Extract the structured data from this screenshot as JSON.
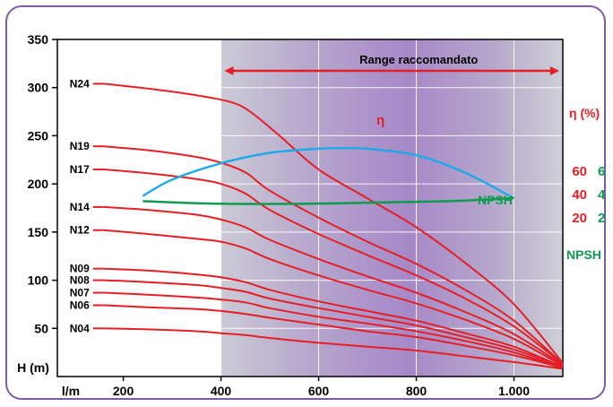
{
  "chart_data": {
    "type": "line",
    "xlabel": "l/m",
    "ylabel": "H (m)",
    "xlim": [
      65,
      1100
    ],
    "ylim": [
      0,
      350
    ],
    "x_ticks": [
      {
        "value": 200,
        "label": "200"
      },
      {
        "value": 400,
        "label": "400"
      },
      {
        "value": 600,
        "label": "600"
      },
      {
        "value": 800,
        "label": "800"
      },
      {
        "value": 1000,
        "label": "1.000"
      }
    ],
    "y_ticks": [
      50,
      100,
      150,
      200,
      250,
      300,
      350
    ],
    "grid": true,
    "range": {
      "label": "Range raccomandato",
      "from": 400,
      "to": 1100
    },
    "series": [
      {
        "name": "N24",
        "x": [
          160,
          250,
          350,
          420,
          460,
          520,
          600,
          700,
          800,
          900,
          1000,
          1100
        ],
        "y": [
          304,
          299,
          292,
          285,
          275,
          250,
          215,
          185,
          155,
          118,
          75,
          14
        ]
      },
      {
        "name": "N19",
        "x": [
          160,
          250,
          350,
          400,
          450,
          500,
          600,
          700,
          800,
          900,
          1000,
          1100
        ],
        "y": [
          239,
          235,
          228,
          222,
          212,
          193,
          165,
          140,
          117,
          90,
          58,
          13
        ]
      },
      {
        "name": "N17",
        "x": [
          160,
          250,
          350,
          400,
          450,
          500,
          600,
          700,
          800,
          900,
          1000,
          1100
        ],
        "y": [
          215,
          211,
          205,
          200,
          190,
          173,
          148,
          126,
          105,
          81,
          52,
          13
        ]
      },
      {
        "name": "N14",
        "x": [
          160,
          250,
          350,
          400,
          450,
          500,
          600,
          700,
          800,
          900,
          1000,
          1100
        ],
        "y": [
          176,
          173,
          168,
          163,
          155,
          142,
          122,
          104,
          87,
          67,
          44,
          12
        ]
      },
      {
        "name": "N12",
        "x": [
          160,
          250,
          350,
          400,
          450,
          500,
          600,
          700,
          800,
          900,
          1000,
          1100
        ],
        "y": [
          152,
          148,
          143,
          140,
          133,
          122,
          105,
          90,
          76,
          59,
          39,
          11
        ]
      },
      {
        "name": "N09",
        "x": [
          160,
          250,
          350,
          400,
          450,
          500,
          600,
          700,
          800,
          900,
          1000,
          1100
        ],
        "y": [
          112,
          110,
          106,
          103,
          98,
          90,
          78,
          68,
          58,
          45,
          31,
          10
        ]
      },
      {
        "name": "N08",
        "x": [
          160,
          250,
          350,
          400,
          450,
          500,
          600,
          700,
          800,
          900,
          1000,
          1100
        ],
        "y": [
          100,
          98,
          95,
          92,
          88,
          81,
          71,
          62,
          53,
          41,
          28,
          10
        ]
      },
      {
        "name": "N07",
        "x": [
          160,
          250,
          350,
          400,
          450,
          500,
          600,
          700,
          800,
          900,
          1000,
          1100
        ],
        "y": [
          87,
          85,
          82,
          80,
          77,
          71,
          62,
          55,
          47,
          37,
          25,
          9
        ]
      },
      {
        "name": "N06",
        "x": [
          160,
          250,
          350,
          400,
          450,
          500,
          600,
          700,
          800,
          900,
          1000,
          1100
        ],
        "y": [
          74,
          72,
          70,
          68,
          65,
          61,
          54,
          47,
          41,
          32,
          22,
          9
        ]
      },
      {
        "name": "N04",
        "x": [
          160,
          250,
          350,
          400,
          450,
          500,
          600,
          700,
          800,
          900,
          1000,
          1100
        ],
        "y": [
          50,
          49,
          47,
          45,
          43,
          40,
          35,
          31,
          27,
          21,
          15,
          8
        ]
      }
    ],
    "efficiency": {
      "name": "η",
      "axis_label": "η (%)",
      "ticks": [
        {
          "value": 60,
          "label": "60"
        },
        {
          "value": 40,
          "label": "40"
        },
        {
          "value": 20,
          "label": "20"
        }
      ],
      "x": [
        240,
        300,
        400,
        500,
        600,
        650,
        700,
        800,
        900,
        1000
      ],
      "y": [
        38,
        52,
        66,
        75,
        78.5,
        79,
        78.5,
        73,
        58,
        36
      ]
    },
    "npsh": {
      "name": "NPSH",
      "axis_label": "NPSH",
      "ticks": [
        {
          "value": 6,
          "label": "6"
        },
        {
          "value": 4,
          "label": "4"
        },
        {
          "value": 2,
          "label": "2"
        }
      ],
      "x": [
        240,
        400,
        600,
        800,
        900,
        1000
      ],
      "y": [
        3.35,
        3.13,
        3.15,
        3.3,
        3.4,
        3.62
      ]
    }
  }
}
